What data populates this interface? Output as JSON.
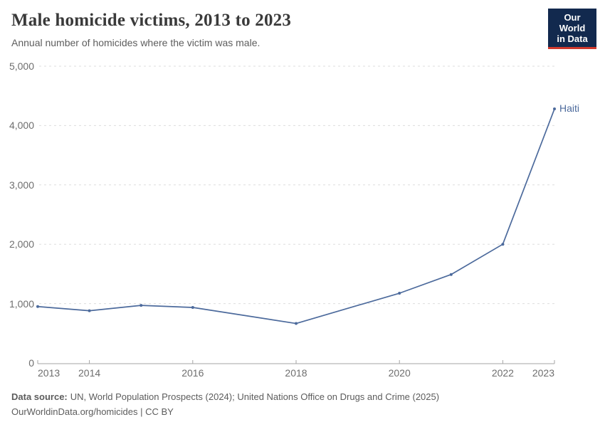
{
  "header": {
    "title": "Male homicide victims, 2013 to 2023",
    "subtitle": "Annual number of homicides where the victim was male.",
    "logo": {
      "line1": "Our World",
      "line2": "in Data"
    }
  },
  "chart_data": {
    "type": "line",
    "title": "Male homicide victims, 2013 to 2023",
    "subtitle": "Annual number of homicides where the victim was male.",
    "xlabel": "",
    "ylabel": "",
    "xlim": [
      2013,
      2023
    ],
    "ylim": [
      0,
      5000
    ],
    "grid": "horizontal-dashed",
    "legend_position": "label-at-line-end",
    "x_ticks": [
      {
        "year": 2013,
        "label": "2013",
        "align": "left"
      },
      {
        "year": 2014,
        "label": "2014",
        "align": "center"
      },
      {
        "year": 2016,
        "label": "2016",
        "align": "center"
      },
      {
        "year": 2018,
        "label": "2018",
        "align": "center"
      },
      {
        "year": 2020,
        "label": "2020",
        "align": "center"
      },
      {
        "year": 2022,
        "label": "2022",
        "align": "center"
      },
      {
        "year": 2023,
        "label": "2023",
        "align": "right"
      }
    ],
    "y_ticks": [
      {
        "value": 0,
        "label": "0"
      },
      {
        "value": 1000,
        "label": "1,000"
      },
      {
        "value": 2000,
        "label": "2,000"
      },
      {
        "value": 3000,
        "label": "3,000"
      },
      {
        "value": 4000,
        "label": "4,000"
      },
      {
        "value": 5000,
        "label": "5,000"
      }
    ],
    "series": [
      {
        "name": "Haiti",
        "color": "#4C6A9C",
        "points": [
          [
            2013,
            950
          ],
          [
            2014,
            880
          ],
          [
            2015,
            970
          ],
          [
            2016,
            935
          ],
          [
            2018,
            665
          ],
          [
            2020,
            1175
          ],
          [
            2021,
            1490
          ],
          [
            2022,
            2000
          ],
          [
            2023,
            4280
          ]
        ]
      }
    ]
  },
  "footer": {
    "source_label": "Data source:",
    "source_text": "UN, World Population Prospects (2024); United Nations Office on Drugs and Crime (2025)",
    "license": "OurWorldinData.org/homicides | CC BY"
  },
  "colors": {
    "accent_line": "#4C6A9C",
    "logo_navy": "#12294E",
    "logo_red": "#D0382C",
    "grid": "#DDDDDD",
    "axis": "#A5A5A5",
    "title_text": "#3A3A3A",
    "muted_text": "#5D5D5D",
    "tick_text": "#6E6E6E"
  }
}
